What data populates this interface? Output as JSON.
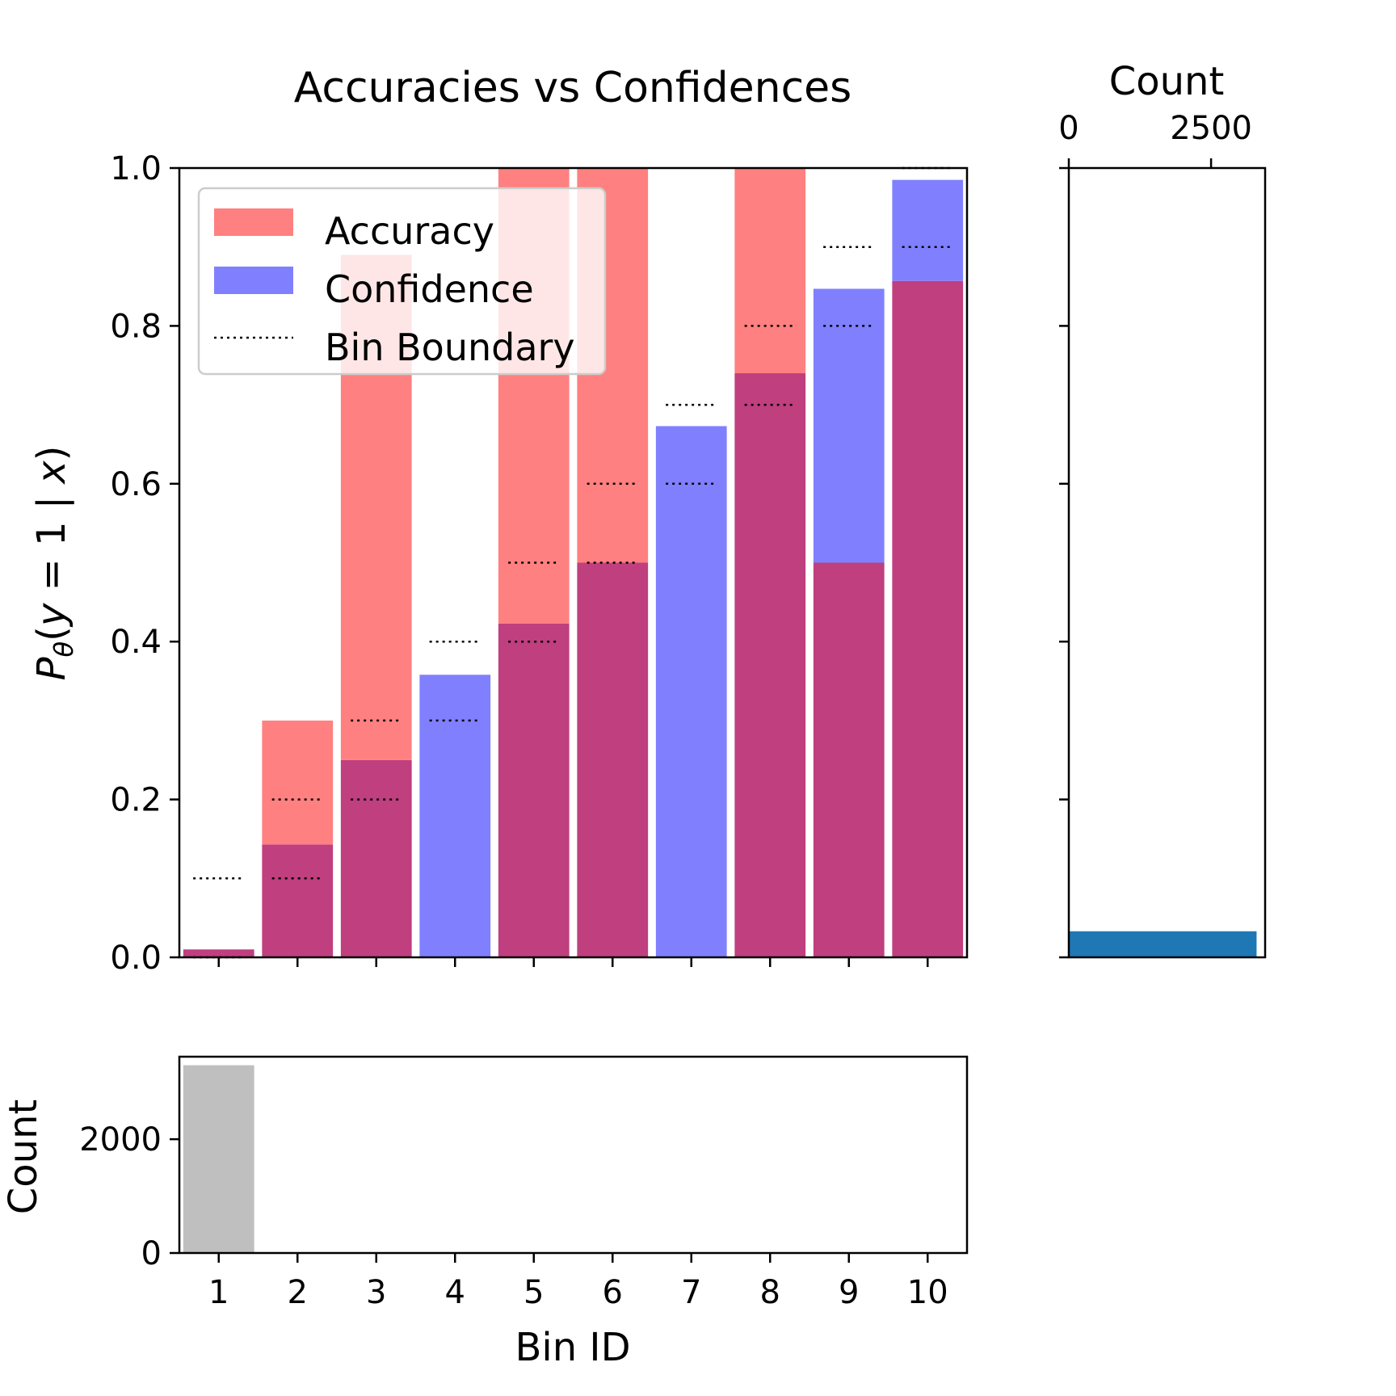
{
  "chart_data": [
    {
      "type": "bar",
      "title": "Accuracies vs Confidences",
      "ylabel": "P_θ(y = 1 | x)",
      "ylim": [
        0,
        1.0
      ],
      "yticks": [
        "0.0",
        "0.2",
        "0.4",
        "0.6",
        "0.8",
        "1.0"
      ],
      "categories": [
        "1",
        "2",
        "3",
        "4",
        "5",
        "6",
        "7",
        "8",
        "9",
        "10"
      ],
      "series": [
        {
          "name": "Accuracy",
          "color": "#ff8080",
          "values": [
            0.01,
            0.3,
            0.89,
            0.0,
            1.0,
            1.0,
            0.0,
            1.0,
            0.5,
            0.857
          ]
        },
        {
          "name": "Confidence",
          "color": "#8080ff",
          "values": [
            0.01,
            0.143,
            0.25,
            0.358,
            0.423,
            0.5,
            0.673,
            0.74,
            0.847,
            0.985
          ]
        },
        {
          "name": "Bin Boundary",
          "style": "dotted",
          "lower": [
            0.0,
            0.1,
            0.2,
            0.3,
            0.4,
            0.5,
            0.6,
            0.7,
            0.8,
            0.9
          ],
          "upper": [
            0.1,
            0.2,
            0.3,
            0.4,
            0.5,
            0.6,
            0.7,
            0.8,
            0.9,
            1.0
          ]
        }
      ],
      "overlap_color": "#bf3f7f",
      "legend": {
        "placement": "upper-left",
        "items": [
          "Accuracy",
          "Confidence",
          "Bin Boundary"
        ]
      },
      "grid": false
    },
    {
      "type": "bar",
      "xlabel": "Bin ID",
      "ylabel": "Count",
      "categories": [
        "1",
        "2",
        "3",
        "4",
        "5",
        "6",
        "7",
        "8",
        "9",
        "10"
      ],
      "values": [
        3300,
        0,
        0,
        0,
        0,
        0,
        0,
        0,
        0,
        10
      ],
      "ylim": [
        0,
        3450
      ],
      "yticks": [
        "0",
        "2000"
      ],
      "color": "#bfbfbf",
      "grid": false
    },
    {
      "type": "bar",
      "orientation": "horizontal",
      "xlabel": "Count",
      "xticks": [
        "0",
        "2500"
      ],
      "xlim": [
        0,
        3450
      ],
      "ylim": [
        0,
        1.0
      ],
      "bins": [
        {
          "lower": 0.0,
          "upper": 0.033,
          "value": 3300
        }
      ],
      "color": "#1f77b4",
      "grid": false
    }
  ]
}
